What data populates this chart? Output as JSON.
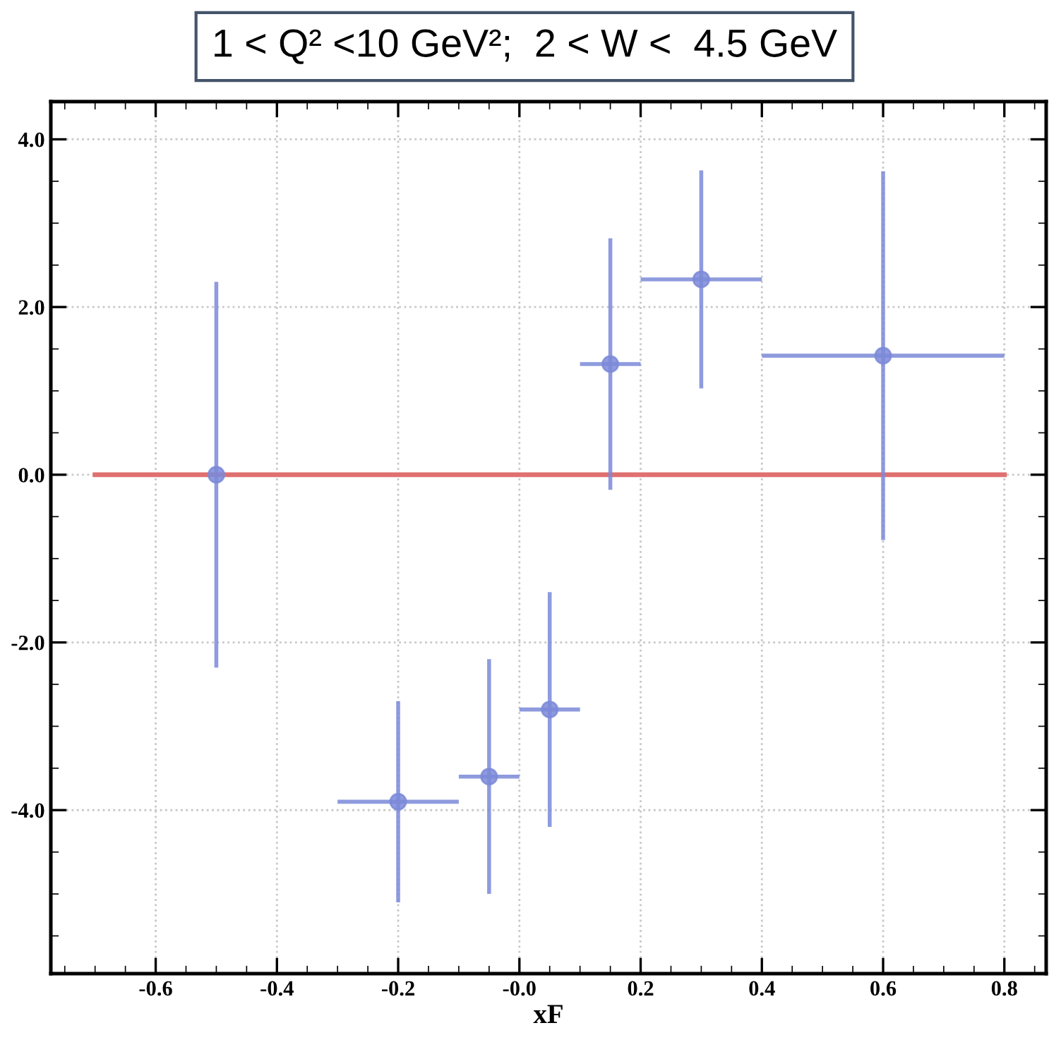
{
  "chart_data": {
    "type": "scatter",
    "title": "1 < Q² <10 GeV²;  2 < W <  4.5 GeV",
    "xlabel": "xF",
    "series": [
      {
        "color": "#7b8ad8",
        "marker": "circle",
        "x": [
          -0.5,
          -0.2,
          -0.05,
          0.05,
          0.15,
          0.3,
          0.6
        ],
        "values": [
          0.0,
          -3.9,
          -3.6,
          -2.8,
          1.32,
          2.33,
          1.42
        ],
        "errors": [
          2.3,
          1.2,
          1.4,
          1.4,
          1.5,
          1.3,
          2.2
        ],
        "xerrors": [
          null,
          0.1,
          0.05,
          0.05,
          0.05,
          0.1,
          0.2
        ]
      },
      {
        "type": "line",
        "color": "#e07070",
        "marker": "none",
        "x": [
          -0.7,
          0.8
        ],
        "values": [
          0.0,
          0.0
        ]
      }
    ],
    "xlim": [
      -0.773,
      0.869
    ],
    "ylim": [
      -5.95,
      4.45
    ],
    "xticks": [
      -0.6,
      -0.4,
      -0.2,
      {
        "value": 0.0,
        "label": "-0.0"
      },
      0.2,
      0.4,
      0.6,
      0.8
    ],
    "yticks": [
      {
        "value": -4.0,
        "label": "-4.0"
      },
      {
        "value": -2.0,
        "label": "-2.0"
      },
      {
        "value": 0.0,
        "label": "0.0"
      },
      {
        "value": 2.0,
        "label": "2.0"
      },
      {
        "value": 4.0,
        "label": "4.0"
      }
    ],
    "grid": true,
    "line_style": "solid"
  }
}
